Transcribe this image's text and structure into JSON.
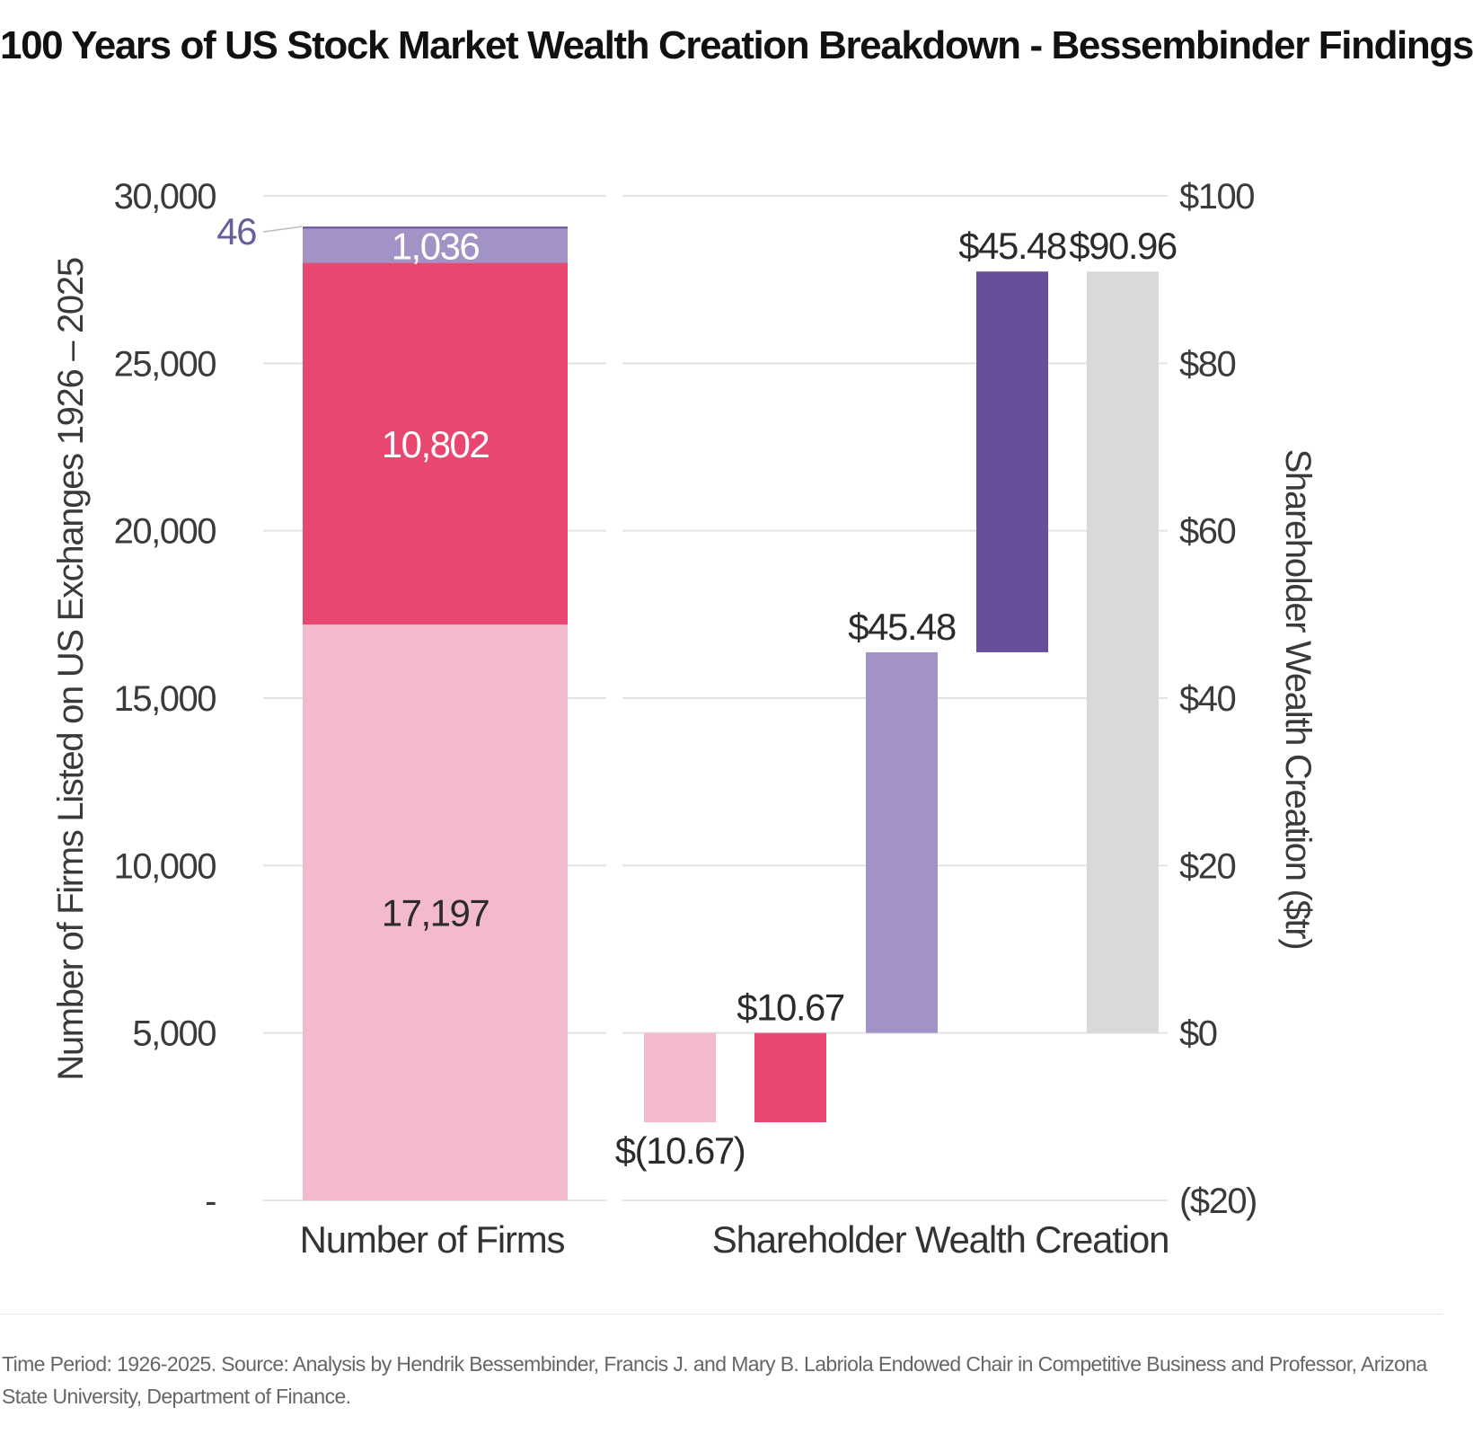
{
  "title": "100 Years of US Stock Market Wealth Creation Breakdown - Bessembinder Findings",
  "source": "Time Period: 1926-2025. Source: Analysis by Hendrik Bessembinder, Francis J. and Mary B. Labriola Endowed Chair in Competitive Business and Professor, Arizona State University, Department of Finance.",
  "colors": {
    "light_pink": "#f3bace",
    "crimson": "#e84770",
    "lavender": "#a292c5",
    "dark_purple": "#664e98",
    "gray": "#d9d9d9",
    "callout": "#6a5d9a",
    "gridline": "#e3e3e3"
  },
  "chart_data": [
    {
      "type": "bar",
      "stacked": true,
      "categories": [
        "Number of Firms"
      ],
      "ylabel": "Number of Firms Listed on US Exchanges  1926 – 2025",
      "ylim": [
        0,
        30000
      ],
      "yticks": [
        0,
        5000,
        10000,
        15000,
        20000,
        25000,
        30000
      ],
      "ytick_labels": [
        "-",
        "5,000",
        "10,000",
        "15,000",
        "20,000",
        "25,000",
        "30,000"
      ],
      "grid": true,
      "segments": [
        {
          "value": 17197,
          "label": "17,197",
          "color": "#f3bace",
          "label_color": "#2b2b2b"
        },
        {
          "value": 10802,
          "label": "10,802",
          "color": "#e84770",
          "label_color": "#ffffff"
        },
        {
          "value": 1036,
          "label": "1,036",
          "color": "#a292c5",
          "label_color": "#ffffff"
        },
        {
          "value": 46,
          "label": "46",
          "color": "#664e98",
          "label_color": "#6a5d9a",
          "callout": true
        }
      ]
    },
    {
      "type": "bar",
      "waterfall": true,
      "categories": [
        "Shareholder Wealth Creation"
      ],
      "ylabel": "Shareholder Wealth Creation ($tr)",
      "ylim": [
        -20,
        100
      ],
      "yticks": [
        -20,
        0,
        20,
        40,
        60,
        80,
        100
      ],
      "ytick_labels": [
        "($20)",
        "$0",
        "$20",
        "$40",
        "$60",
        "$80",
        "$100"
      ],
      "grid": true,
      "steps": [
        {
          "start": 0,
          "end": -10.67,
          "label": "$(10.67)",
          "color": "#f3bace",
          "label_pos": "below"
        },
        {
          "start": -10.67,
          "end": 0,
          "label": "$10.67",
          "color": "#e84770",
          "label_pos": "above"
        },
        {
          "start": 0,
          "end": 45.48,
          "label": "$45.48",
          "color": "#a292c5",
          "label_pos": "above"
        },
        {
          "start": 45.48,
          "end": 90.96,
          "label": "$45.48",
          "color": "#664e98",
          "label_pos": "above"
        },
        {
          "start": 0,
          "end": 90.96,
          "label": "$90.96",
          "color": "#d9d9d9",
          "label_pos": "above",
          "total": true
        }
      ]
    }
  ]
}
